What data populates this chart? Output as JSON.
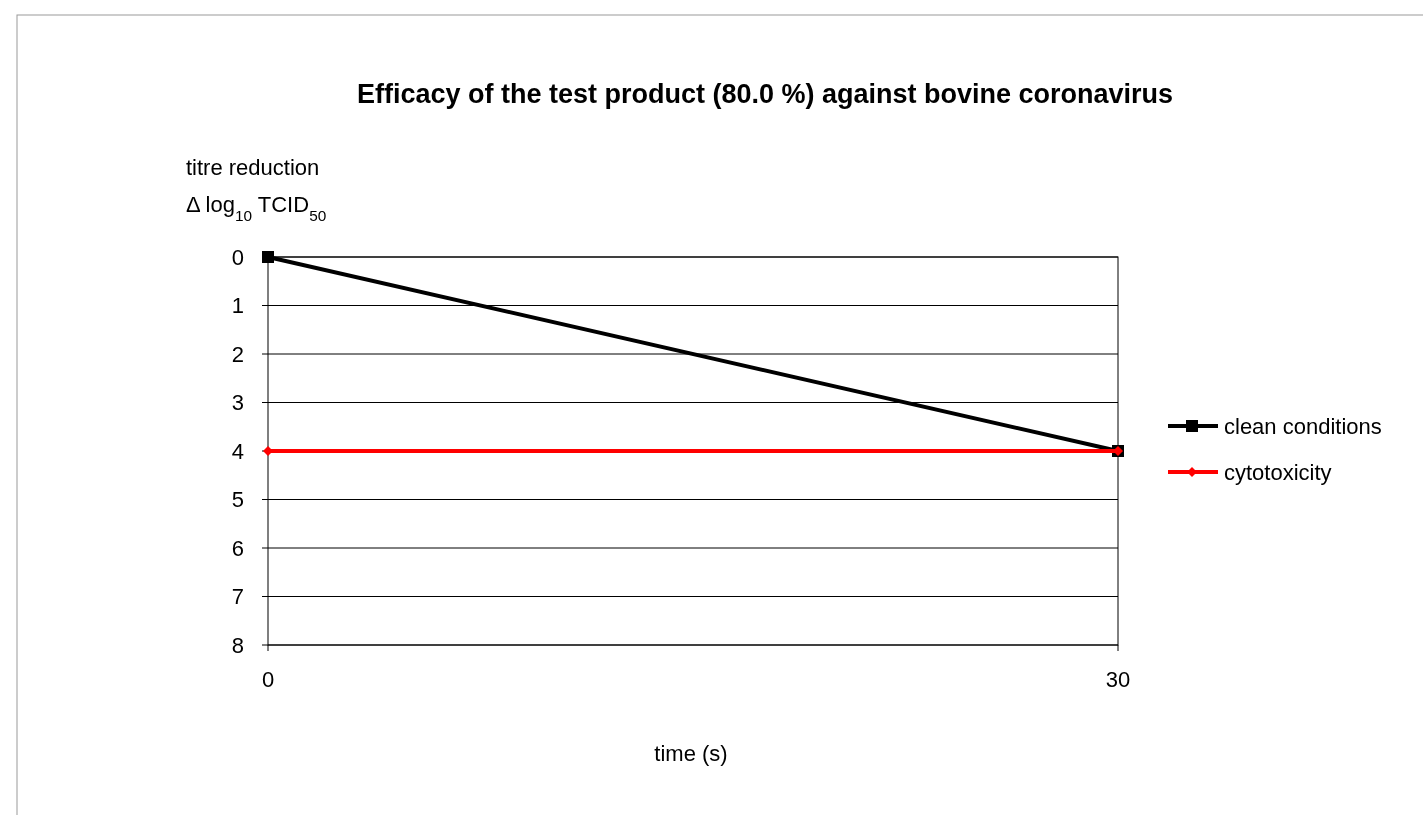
{
  "chart_data": {
    "type": "line",
    "title": "Efficacy of the test product (80.0 %) against bovine coronavirus",
    "xlabel": "time (s)",
    "ylabel": "titre reduction\nΔ log$_{10}$ TCID$_{50}$",
    "x": [
      0,
      30
    ],
    "xlim": [
      0,
      30
    ],
    "xticks": [
      0,
      30
    ],
    "ylim": [
      8,
      0
    ],
    "yticks": [
      0,
      1,
      2,
      3,
      4,
      5,
      6,
      7,
      8
    ],
    "grid": "y",
    "legend": "right",
    "series": [
      {
        "name": "clean conditions",
        "color": "#000000",
        "values": [
          0,
          4
        ],
        "marker": "square"
      },
      {
        "name": "cytotoxicity",
        "color": "#ff0000",
        "values": [
          4,
          4
        ],
        "marker": "diamond"
      }
    ]
  }
}
